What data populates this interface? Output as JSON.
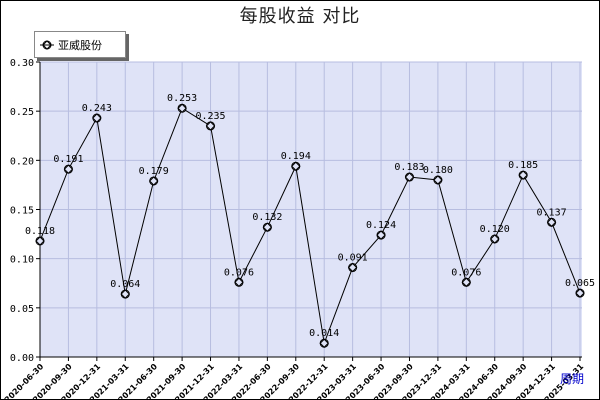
{
  "colors": {
    "plot_background": "#dfe3f7",
    "grid": "#b7bde0",
    "line": "#000000",
    "marker": "#000000",
    "axis": "#000000",
    "period_link": "#0000cc"
  },
  "legend": {
    "marker_icon": "diamond-circle-marker-icon",
    "placement": "top-left"
  },
  "period_link_label": "周期",
  "chart_data": {
    "type": "line",
    "title": "每股收益  对比",
    "xlabel": "",
    "ylabel": "",
    "ylim": [
      0,
      0.3
    ],
    "yticks": [
      "0.00",
      "0.05",
      "0.10",
      "0.15",
      "0.20",
      "0.25",
      "0.30"
    ],
    "grid": true,
    "categories": [
      "2020-06-30",
      "2020-09-30",
      "2020-12-31",
      "2021-03-31",
      "2021-06-30",
      "2021-09-30",
      "2021-12-31",
      "2022-03-31",
      "2022-06-30",
      "2022-09-30",
      "2022-12-31",
      "2023-03-31",
      "2023-06-30",
      "2023-09-30",
      "2023-12-31",
      "2024-03-31",
      "2024-06-30",
      "2024-09-30",
      "2024-12-31",
      "2025-03-31"
    ],
    "series": [
      {
        "name": "亚威股份",
        "values": [
          0.118,
          0.191,
          0.243,
          0.064,
          0.179,
          0.253,
          0.235,
          0.076,
          0.132,
          0.194,
          0.014,
          0.091,
          0.124,
          0.183,
          0.18,
          0.076,
          0.12,
          0.185,
          0.137,
          0.065
        ],
        "labels": [
          "0.118",
          "0.191",
          "0.243",
          "0.064",
          "0.179",
          "0.253",
          "0.235",
          "0.076",
          "0.132",
          "0.194",
          "0.014",
          "0.091",
          "0.124",
          "0.183",
          "0.180",
          "0.076",
          "0.120",
          "0.185",
          "0.137",
          "0.065"
        ]
      }
    ]
  }
}
